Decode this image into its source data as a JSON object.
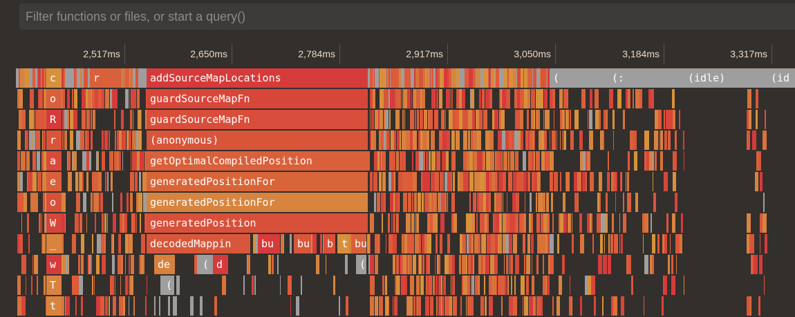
{
  "search": {
    "placeholder": "Filter functions or files, or start a query()"
  },
  "ruler": {
    "ticks": [
      "2,517ms",
      "2,650ms",
      "2,784ms",
      "2,917ms",
      "3,050ms",
      "3,184ms",
      "3,317ms"
    ]
  },
  "colors": {
    "background": "#332f2c",
    "red": "#d63b3b",
    "orange": "#d8913a",
    "idle": "#9e9e9e"
  },
  "frames": [
    {
      "row": 0,
      "label": "c",
      "color": "#d8913a"
    },
    {
      "row": 0,
      "label": "r",
      "color": "#d9603a"
    },
    {
      "row": 0,
      "label": "addSourceMapLocations",
      "color": "#d63b3b"
    },
    {
      "row": 0,
      "label": "(",
      "color": "#9e9e9e"
    },
    {
      "row": 0,
      "label": "(:",
      "color": "#9e9e9e"
    },
    {
      "row": 0,
      "label": "(idle)",
      "color": "#9e9e9e"
    },
    {
      "row": 0,
      "label": "(id",
      "color": "#9e9e9e"
    },
    {
      "row": 1,
      "label": "o",
      "color": "#d9603a"
    },
    {
      "row": 1,
      "label": "guardSourceMapFn",
      "color": "#d8463a"
    },
    {
      "row": 2,
      "label": "R",
      "color": "#d63b3b"
    },
    {
      "row": 2,
      "label": "guardSourceMapFn",
      "color": "#d84e3a"
    },
    {
      "row": 3,
      "label": "r",
      "color": "#d9553a"
    },
    {
      "row": 3,
      "label": "(anonymous)",
      "color": "#d9553a"
    },
    {
      "row": 4,
      "label": "a",
      "color": "#d84a3a"
    },
    {
      "row": 4,
      "label": "getOptimalCompiledPosition",
      "color": "#d9603a"
    },
    {
      "row": 5,
      "label": "e",
      "color": "#d9603a"
    },
    {
      "row": 5,
      "label": "generatedPositionFor",
      "color": "#d8653a"
    },
    {
      "row": 6,
      "label": "o",
      "color": "#d8503a"
    },
    {
      "row": 6,
      "label": "generatedPositionFor",
      "color": "#d8843e"
    },
    {
      "row": 7,
      "label": "W",
      "color": "#d8463a"
    },
    {
      "row": 7,
      "label": "generatedPosition",
      "color": "#d8503a"
    },
    {
      "row": 8,
      "label": "_",
      "color": "#d8843e"
    },
    {
      "row": 8,
      "label": "decodedMappin",
      "color": "#d8573a"
    },
    {
      "row": 8,
      "label": "bu",
      "color": "#d63b3b"
    },
    {
      "row": 8,
      "label": "bu",
      "color": "#d8573a"
    },
    {
      "row": 8,
      "label": "b",
      "color": "#d8503a"
    },
    {
      "row": 8,
      "label": "t",
      "color": "#d8913a"
    },
    {
      "row": 8,
      "label": "bu",
      "color": "#d9603a"
    },
    {
      "row": 9,
      "label": "w",
      "color": "#d63b3b"
    },
    {
      "row": 9,
      "label": "de",
      "color": "#d8803e"
    },
    {
      "row": 9,
      "label": "(",
      "color": "#9e9e9e"
    },
    {
      "row": 9,
      "label": "d",
      "color": "#d63b3b"
    },
    {
      "row": 9,
      "label": "(",
      "color": "#9e9e9e"
    },
    {
      "row": 10,
      "label": "T",
      "color": "#d8843e"
    },
    {
      "row": 10,
      "label": "(",
      "color": "#9e9e9e"
    },
    {
      "row": 11,
      "label": "t",
      "color": "#d8843e"
    }
  ]
}
